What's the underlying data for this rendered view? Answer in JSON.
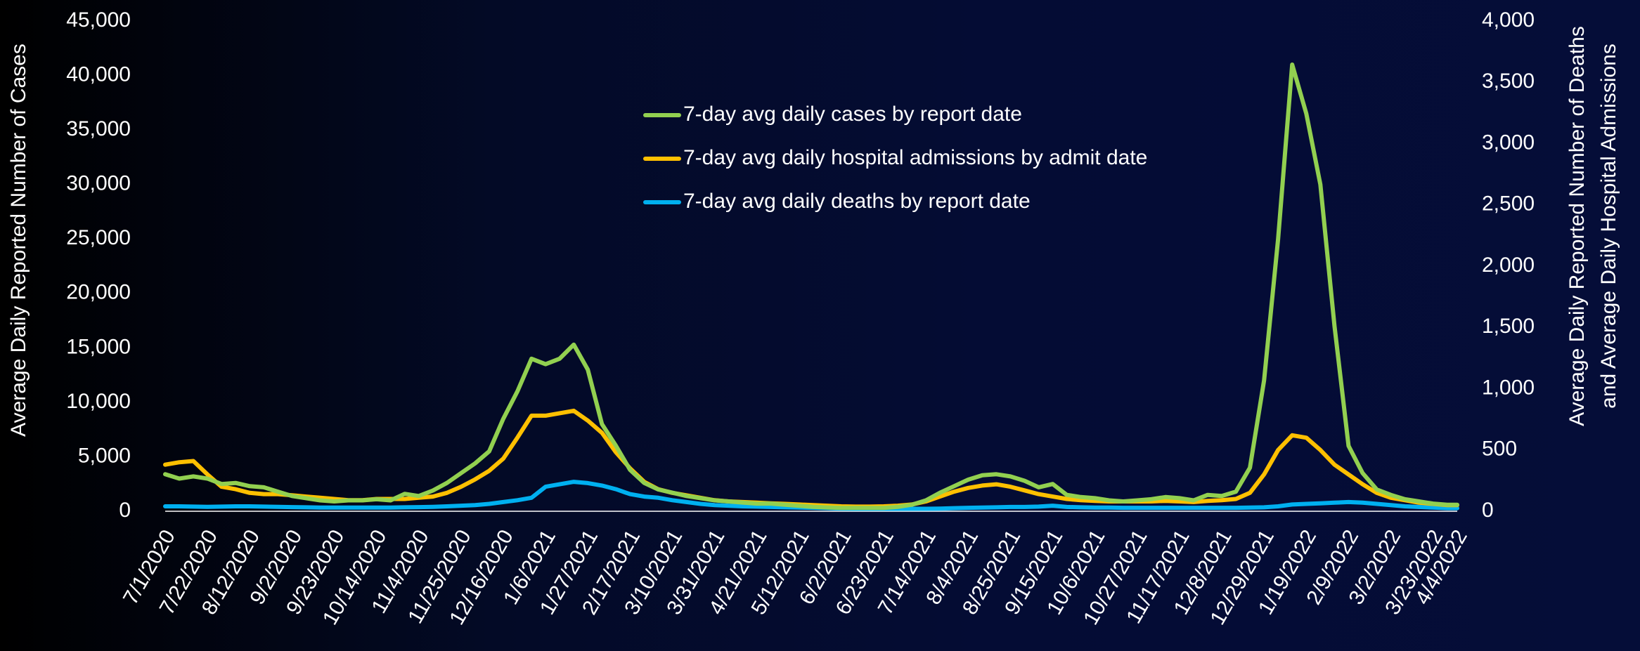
{
  "chart_data": {
    "type": "line",
    "ylabel": "Average Daily Reported Number of Cases",
    "y2label": [
      "Average Daily Reported Number of Deaths",
      "and Average Daily Hospital Admissions"
    ],
    "legend": "top-center",
    "x": [
      "7/1/2020",
      "7/8/2020",
      "7/15/2020",
      "7/22/2020",
      "7/29/2020",
      "8/5/2020",
      "8/12/2020",
      "8/19/2020",
      "8/26/2020",
      "9/2/2020",
      "9/9/2020",
      "9/16/2020",
      "9/23/2020",
      "9/30/2020",
      "10/7/2020",
      "10/14/2020",
      "10/21/2020",
      "10/28/2020",
      "11/4/2020",
      "11/11/2020",
      "11/18/2020",
      "11/25/2020",
      "12/2/2020",
      "12/9/2020",
      "12/16/2020",
      "12/23/2020",
      "12/30/2020",
      "1/6/2021",
      "1/13/2021",
      "1/20/2021",
      "1/27/2021",
      "2/3/2021",
      "2/10/2021",
      "2/17/2021",
      "2/24/2021",
      "3/3/2021",
      "3/10/2021",
      "3/17/2021",
      "3/24/2021",
      "3/31/2021",
      "4/7/2021",
      "4/14/2021",
      "4/21/2021",
      "4/28/2021",
      "5/5/2021",
      "5/12/2021",
      "5/19/2021",
      "5/26/2021",
      "6/2/2021",
      "6/9/2021",
      "6/16/2021",
      "6/23/2021",
      "6/30/2021",
      "7/7/2021",
      "7/14/2021",
      "7/21/2021",
      "7/28/2021",
      "8/4/2021",
      "8/11/2021",
      "8/18/2021",
      "8/25/2021",
      "9/1/2021",
      "9/8/2021",
      "9/15/2021",
      "9/22/2021",
      "9/29/2021",
      "10/6/2021",
      "10/13/2021",
      "10/20/2021",
      "10/27/2021",
      "11/3/2021",
      "11/10/2021",
      "11/17/2021",
      "11/24/2021",
      "12/1/2021",
      "12/8/2021",
      "12/15/2021",
      "12/22/2021",
      "12/29/2021",
      "1/5/2022",
      "1/12/2022",
      "1/19/2022",
      "1/26/2022",
      "2/2/2022",
      "2/9/2022",
      "2/16/2022",
      "2/23/2022",
      "3/2/2022",
      "3/9/2022",
      "3/16/2022",
      "3/23/2022",
      "3/30/2022",
      "4/4/2022"
    ],
    "series": [
      {
        "name": "7-day avg daily cases by report date",
        "color": "#92d050",
        "axis": "y",
        "values": [
          3400,
          3000,
          3200,
          3000,
          2500,
          2600,
          2300,
          2200,
          1800,
          1400,
          1200,
          1000,
          900,
          1000,
          1000,
          1100,
          1000,
          1600,
          1400,
          1900,
          2600,
          3500,
          4400,
          5500,
          8500,
          11000,
          14000,
          13500,
          14000,
          15300,
          13000,
          8000,
          6000,
          3800,
          2600,
          2000,
          1700,
          1400,
          1200,
          1000,
          900,
          800,
          700,
          700,
          600,
          500,
          400,
          350,
          300,
          300,
          300,
          300,
          400,
          600,
          1000,
          1700,
          2300,
          2900,
          3300,
          3400,
          3200,
          2800,
          2200,
          2500,
          1500,
          1300,
          1200,
          1000,
          900,
          1000,
          1100,
          1300,
          1200,
          1000,
          1500,
          1400,
          1800,
          4000,
          12000,
          25000,
          41000,
          36500,
          30000,
          17000,
          6000,
          3500,
          2000,
          1500,
          1100,
          900,
          700,
          600,
          600
        ]
      },
      {
        "name": "7-day avg daily hospital admissions by admit date",
        "color": "#ffc000",
        "axis": "y2",
        "values": [
          380,
          400,
          410,
          300,
          200,
          180,
          150,
          140,
          140,
          130,
          120,
          110,
          100,
          90,
          90,
          100,
          100,
          100,
          110,
          120,
          150,
          200,
          260,
          330,
          430,
          600,
          780,
          780,
          800,
          820,
          740,
          640,
          480,
          350,
          240,
          180,
          150,
          130,
          110,
          90,
          80,
          75,
          70,
          65,
          60,
          55,
          50,
          45,
          40,
          38,
          38,
          40,
          45,
          55,
          80,
          120,
          160,
          190,
          210,
          220,
          200,
          170,
          140,
          120,
          100,
          90,
          85,
          80,
          80,
          80,
          80,
          85,
          80,
          75,
          85,
          90,
          100,
          150,
          300,
          500,
          620,
          600,
          500,
          380,
          300,
          220,
          150,
          110,
          90,
          70,
          60,
          50,
          50
        ]
      },
      {
        "name": "7-day avg daily deaths by report date",
        "color": "#00b0f0",
        "axis": "y2",
        "values": [
          40,
          40,
          38,
          36,
          38,
          40,
          40,
          38,
          36,
          34,
          32,
          30,
          30,
          30,
          30,
          30,
          30,
          32,
          34,
          36,
          40,
          45,
          50,
          60,
          75,
          90,
          110,
          200,
          220,
          240,
          230,
          210,
          180,
          140,
          120,
          110,
          90,
          75,
          60,
          50,
          45,
          40,
          38,
          35,
          32,
          30,
          28,
          25,
          22,
          20,
          20,
          20,
          20,
          20,
          20,
          22,
          25,
          28,
          30,
          32,
          35,
          35,
          38,
          45,
          35,
          32,
          30,
          30,
          28,
          28,
          28,
          28,
          28,
          28,
          28,
          28,
          28,
          30,
          32,
          40,
          55,
          60,
          65,
          70,
          75,
          70,
          60,
          50,
          40,
          35,
          30,
          25,
          25
        ]
      }
    ],
    "xlim": [
      "7/1/2020",
      "4/4/2022"
    ],
    "xticks": [
      "7/1/2020",
      "7/22/2020",
      "8/12/2020",
      "9/2/2020",
      "9/23/2020",
      "10/14/2020",
      "11/4/2020",
      "11/25/2020",
      "12/16/2020",
      "1/6/2021",
      "1/27/2021",
      "2/17/2021",
      "3/10/2021",
      "3/31/2021",
      "4/21/2021",
      "5/12/2021",
      "6/2/2021",
      "6/23/2021",
      "7/14/2021",
      "8/4/2021",
      "8/25/2021",
      "9/15/2021",
      "10/6/2021",
      "10/27/2021",
      "11/17/2021",
      "12/8/2021",
      "12/29/2021",
      "1/19/2022",
      "2/9/2022",
      "3/2/2022",
      "3/23/2022",
      "4/4/2022"
    ],
    "ylim": [
      0,
      45000
    ],
    "yticks": [
      0,
      {
        "value": 5000,
        "label": "5,000"
      },
      {
        "value": 10000,
        "label": "10,000"
      },
      {
        "value": 15000,
        "label": "15,000"
      },
      {
        "value": 20000,
        "label": "20,000"
      },
      {
        "value": 25000,
        "label": "25,000"
      },
      {
        "value": 30000,
        "label": "30,000"
      },
      {
        "value": 35000,
        "label": "35,000"
      },
      {
        "value": 40000,
        "label": "40,000"
      },
      {
        "value": 45000,
        "label": "45,000"
      }
    ],
    "y2lim": [
      0,
      4000
    ],
    "y2ticks": [
      0,
      500,
      {
        "value": 1000,
        "label": "1,000"
      },
      {
        "value": 1500,
        "label": "1,500"
      },
      {
        "value": 2000,
        "label": "2,000"
      },
      {
        "value": 2500,
        "label": "2,500"
      },
      {
        "value": 3000,
        "label": "3,000"
      },
      {
        "value": 3500,
        "label": "3,500"
      },
      {
        "value": 4000,
        "label": "4,000"
      }
    ],
    "grid": false
  }
}
